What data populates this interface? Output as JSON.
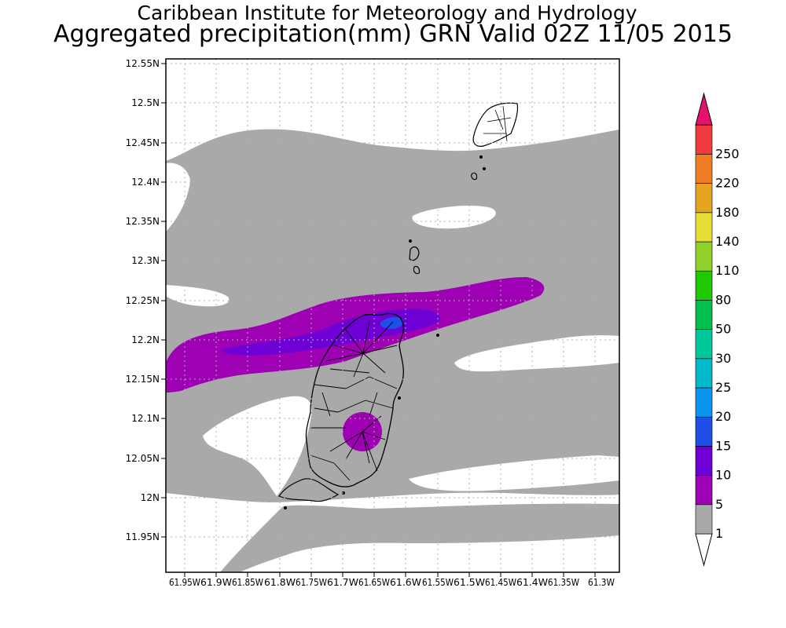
{
  "title": "Caribbean Institute for Meteorology and Hydrology",
  "subtitle": "Aggregated precipitation(mm) GRN Valid 02Z 11/05 2015",
  "lat_labels": [
    "12.55N",
    "12.5N",
    "12.45N",
    "12.4N",
    "12.35N",
    "12.3N",
    "12.25N",
    "12.2N",
    "12.15N",
    "12.1N",
    "12.05N",
    "12N",
    "11.95N"
  ],
  "lon_labels": [
    "61.95W",
    "61.9W",
    "61.85W",
    "61.8W",
    "61.75W",
    "61.7W",
    "61.65W",
    "61.6W",
    "61.55W",
    "61.5W",
    "61.45W",
    "61.4W",
    "61.35W",
    "61.3W"
  ],
  "colorbar": {
    "labels": [
      "1",
      "5",
      "10",
      "15",
      "20",
      "25",
      "30",
      "50",
      "80",
      "110",
      "140",
      "180",
      "220",
      "250"
    ],
    "colors": [
      "#a9a9a9",
      "#9e00b4",
      "#6e00d6",
      "#1f4fe6",
      "#0a96f0",
      "#00b9c9",
      "#00c89a",
      "#00bf4f",
      "#1fc800",
      "#8fd12a",
      "#e6dc32",
      "#e6a521",
      "#f07d22",
      "#f03c3c",
      "#e6106e"
    ]
  },
  "colors": {
    "background": "#ffffff",
    "rain_1_5": "#a9a9a9",
    "rain_5_10": "#9e00b4",
    "rain_10_15": "#6e00d6",
    "rain_15_20": "#1f4fe6",
    "grid": "#b0b0b0"
  }
}
